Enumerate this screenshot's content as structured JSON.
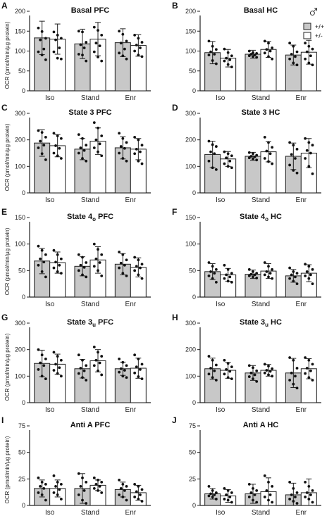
{
  "legend": {
    "symbol": "♂",
    "entries": [
      {
        "label": "+/+",
        "color": "#c8c8c8"
      },
      {
        "label": "+/-",
        "color": "#ffffff"
      }
    ]
  },
  "colors": {
    "wt": "#c8c8c8",
    "het": "#ffffff",
    "axis": "#222222"
  },
  "chart_data": [
    {
      "panel": "A",
      "title": "Basal PFC",
      "type": "bar",
      "ylabel": "OCR (pmol/min/µg protein)",
      "ylim": [
        0,
        200
      ],
      "yticks": [
        0,
        50,
        100,
        150,
        200
      ],
      "categories": [
        "Iso",
        "Stand",
        "Enr"
      ],
      "series": [
        {
          "name": "+/+",
          "values": [
            133,
            118,
            121
          ],
          "err": [
            42,
            37,
            35
          ],
          "points": [
            [
              158,
              149,
              132,
              128,
              105,
              98,
              90,
              78
            ],
            [
              150,
              148,
              122,
              116,
              108,
              92,
              90,
              75
            ],
            [
              150,
              142,
              125,
              120,
              105,
              95,
              88,
              80
            ]
          ]
        },
        {
          "name": "+/-",
          "values": [
            130,
            130,
            114
          ],
          "err": [
            38,
            42,
            27
          ],
          "points": [
            [
              148,
              140,
              132,
              128,
              108,
              98,
              82,
              80
            ],
            [
              160,
              152,
              140,
              120,
              113,
              98,
              85,
              75
            ],
            [
              140,
              132,
              122,
              115,
              108,
              100,
              90,
              86
            ]
          ]
        }
      ]
    },
    {
      "panel": "B",
      "title": "Basal HC",
      "type": "bar",
      "ylabel": "",
      "ylim": [
        0,
        200
      ],
      "yticks": [
        0,
        50,
        100,
        150,
        200
      ],
      "categories": [
        "Iso",
        "Stand",
        "Enr"
      ],
      "series": [
        {
          "name": "+/+",
          "values": [
            96,
            92,
            90
          ],
          "err": [
            28,
            10,
            25
          ],
          "points": [
            [
              125,
              112,
              104,
              98,
              92,
              90,
              76,
              68
            ],
            [
              100,
              96,
              94,
              92,
              90,
              88,
              86,
              84
            ],
            [
              120,
              112,
              98,
              92,
              86,
              80,
              70,
              65
            ]
          ]
        },
        {
          "name": "+/-",
          "values": [
            82,
            104,
            97
          ],
          "err": [
            22,
            20,
            30
          ],
          "points": [
            [
              105,
              96,
              88,
              82,
              78,
              75,
              66,
              60
            ],
            [
              125,
              120,
              108,
              104,
              100,
              95,
              86,
              80
            ],
            [
              120,
              112,
              105,
              98,
              88,
              80,
              70,
              65
            ]
          ]
        }
      ]
    },
    {
      "panel": "C",
      "title": "State 3 PFC",
      "type": "bar",
      "ylabel": "OCR (pmol/min/µg protein)",
      "ylim": [
        0,
        300
      ],
      "yticks": [
        0,
        100,
        200,
        300
      ],
      "categories": [
        "Iso",
        "Stand",
        "Enr"
      ],
      "series": [
        {
          "name": "+/+",
          "values": [
            188,
            165,
            170
          ],
          "err": [
            50,
            40,
            42
          ],
          "points": [
            [
              235,
              228,
              210,
              195,
              180,
              170,
              148,
              125
            ],
            [
              220,
              205,
              180,
              170,
              160,
              150,
              130,
              120
            ],
            [
              225,
              205,
              190,
              175,
              168,
              150,
              130,
              120
            ]
          ]
        },
        {
          "name": "+/-",
          "values": [
            178,
            195,
            165
          ],
          "err": [
            42,
            50,
            40
          ],
          "points": [
            [
              225,
              215,
              205,
              178,
              168,
              150,
              140,
              130
            ],
            [
              265,
              245,
              215,
              200,
              185,
              170,
              155,
              140
            ],
            [
              210,
              200,
              180,
              165,
              155,
              148,
              120,
              110
            ]
          ]
        }
      ]
    },
    {
      "panel": "D",
      "title": "State 3 HC",
      "type": "bar",
      "ylabel": "",
      "ylim": [
        0,
        300
      ],
      "yticks": [
        0,
        100,
        200,
        300
      ],
      "categories": [
        "Iso",
        "Stand",
        "Enr"
      ],
      "series": [
        {
          "name": "+/+",
          "values": [
            145,
            138,
            138
          ],
          "err": [
            50,
            15,
            50
          ],
          "points": [
            [
              195,
              182,
              175,
              155,
              148,
              120,
              95,
              88
            ],
            [
              152,
              148,
              142,
              138,
              136,
              132,
              128,
              124
            ],
            [
              190,
              180,
              165,
              145,
              130,
              105,
              85,
              75
            ]
          ]
        },
        {
          "name": "+/-",
          "values": [
            128,
            155,
            150
          ],
          "err": [
            28,
            38,
            55
          ],
          "points": [
            [
              155,
              148,
              140,
              132,
              120,
              110,
              100,
              95
            ],
            [
              210,
              190,
              172,
              158,
              148,
              130,
              118,
              110
            ],
            [
              205,
              190,
              180,
              160,
              150,
              130,
              100,
              72
            ]
          ]
        }
      ]
    },
    {
      "panel": "E",
      "title": "State 4o PFC",
      "titleBase": "State 4",
      "titleSub": "o",
      "titleTail": " PFC",
      "type": "bar",
      "ylabel": "OCR (pmol/min/µg protein)",
      "ylim": [
        0,
        150
      ],
      "yticks": [
        0,
        50,
        100,
        150
      ],
      "categories": [
        "Iso",
        "Stand",
        "Enr"
      ],
      "series": [
        {
          "name": "+/+",
          "values": [
            68,
            58,
            62
          ],
          "err": [
            24,
            18,
            20
          ],
          "points": [
            [
              96,
              88,
              80,
              72,
              66,
              60,
              48,
              38
            ],
            [
              80,
              75,
              65,
              60,
              56,
              50,
              42,
              38
            ],
            [
              85,
              80,
              70,
              64,
              60,
              55,
              45,
              40
            ]
          ]
        },
        {
          "name": "+/-",
          "values": [
            65,
            70,
            56
          ],
          "err": [
            20,
            25,
            18
          ],
          "points": [
            [
              88,
              80,
              72,
              66,
              60,
              55,
              48,
              45
            ],
            [
              100,
              90,
              80,
              72,
              65,
              58,
              50,
              40
            ],
            [
              75,
              70,
              62,
              58,
              55,
              50,
              42,
              35
            ]
          ]
        }
      ]
    },
    {
      "panel": "F",
      "title": "State 4o HC",
      "titleBase": "State 4",
      "titleSub": "o",
      "titleTail": " HC",
      "type": "bar",
      "ylabel": "",
      "ylim": [
        0,
        150
      ],
      "yticks": [
        0,
        50,
        100,
        150
      ],
      "categories": [
        "Iso",
        "Stand",
        "Enr"
      ],
      "series": [
        {
          "name": "+/+",
          "values": [
            48,
            43,
            40
          ],
          "err": [
            15,
            8,
            12
          ],
          "points": [
            [
              65,
              58,
              52,
              48,
              45,
              40,
              35,
              28
            ],
            [
              52,
              48,
              45,
              43,
              42,
              40,
              38,
              36
            ],
            [
              55,
              48,
              45,
              42,
              38,
              35,
              30,
              25
            ]
          ]
        },
        {
          "name": "+/-",
          "values": [
            42,
            49,
            45
          ],
          "err": [
            12,
            14,
            16
          ],
          "points": [
            [
              60,
              52,
              45,
              42,
              38,
              35,
              30,
              28
            ],
            [
              65,
              58,
              52,
              48,
              45,
              42,
              38,
              35
            ],
            [
              62,
              58,
              52,
              48,
              42,
              40,
              35,
              25
            ]
          ]
        }
      ]
    },
    {
      "panel": "G",
      "title": "State 3u PFC",
      "titleBase": "State 3",
      "titleSub": "u",
      "titleTail": " PFC",
      "type": "bar",
      "ylabel": "OCR (pmol/min/µg protein)",
      "ylim": [
        0,
        300
      ],
      "yticks": [
        0,
        100,
        200,
        300
      ],
      "categories": [
        "Iso",
        "Stand",
        "Enr"
      ],
      "series": [
        {
          "name": "+/+",
          "values": [
            148,
            128,
            128
          ],
          "err": [
            50,
            35,
            25
          ],
          "points": [
            [
              200,
              180,
              165,
              150,
              140,
              125,
              100,
              90
            ],
            [
              180,
              160,
              140,
              130,
              120,
              110,
              95,
              85
            ],
            [
              165,
              152,
              140,
              128,
              122,
              115,
              100,
              95
            ]
          ]
        },
        {
          "name": "+/-",
          "values": [
            145,
            158,
            130
          ],
          "err": [
            38,
            42,
            38
          ],
          "points": [
            [
              190,
              175,
              160,
              145,
              132,
              122,
              110,
              100
            ],
            [
              210,
              190,
              175,
              160,
              150,
              140,
              120,
              105
            ],
            [
              180,
              165,
              145,
              135,
              125,
              112,
              98,
              90
            ]
          ]
        }
      ]
    },
    {
      "panel": "H",
      "title": "State 3u HC",
      "titleBase": "State 3",
      "titleSub": "u",
      "titleTail": " HC",
      "type": "bar",
      "ylabel": "",
      "ylim": [
        0,
        300
      ],
      "yticks": [
        0,
        100,
        200,
        300
      ],
      "categories": [
        "Iso",
        "Stand",
        "Enr"
      ],
      "series": [
        {
          "name": "+/+",
          "values": [
            128,
            112,
            112
          ],
          "err": [
            40,
            28,
            55
          ],
          "points": [
            [
              175,
              160,
              142,
              130,
              120,
              108,
              95,
              85
            ],
            [
              140,
              132,
              120,
              112,
              105,
              98,
              90,
              80
            ],
            [
              170,
              160,
              130,
              112,
              100,
              85,
              70,
              55
            ]
          ]
        },
        {
          "name": "+/-",
          "values": [
            122,
            122,
            128
          ],
          "err": [
            30,
            22,
            38
          ],
          "points": [
            [
              160,
              148,
              135,
              125,
              118,
              108,
              95,
              90
            ],
            [
              145,
              138,
              128,
              122,
              118,
              112,
              105,
              100
            ],
            [
              170,
              160,
              145,
              130,
              120,
              110,
              95,
              85
            ]
          ]
        }
      ]
    },
    {
      "panel": "I",
      "title": "Anti A PFC",
      "type": "bar",
      "ylabel": "OCR (pmol/min/µg protein)",
      "ylim": [
        0,
        75
      ],
      "yticks": [
        0,
        25,
        50,
        75
      ],
      "categories": [
        "Iso",
        "Stand",
        "Enr"
      ],
      "series": [
        {
          "name": "+/+",
          "values": [
            16,
            16,
            15
          ],
          "err": [
            8,
            14,
            7
          ],
          "points": [
            [
              26,
              22,
              20,
              18,
              16,
              12,
              10,
              5
            ],
            [
              30,
              26,
              22,
              18,
              14,
              10,
              5,
              2
            ],
            [
              24,
              20,
              18,
              16,
              14,
              10,
              8,
              5
            ]
          ]
        },
        {
          "name": "+/-",
          "values": [
            16,
            19,
            12
          ],
          "err": [
            8,
            5,
            7
          ],
          "points": [
            [
              28,
              22,
              20,
              18,
              15,
              12,
              10,
              6
            ],
            [
              26,
              24,
              22,
              20,
              18,
              16,
              14,
              12
            ],
            [
              20,
              18,
              15,
              13,
              10,
              8,
              6,
              4
            ]
          ]
        }
      ]
    },
    {
      "panel": "J",
      "title": "Anti A HC",
      "type": "bar",
      "ylabel": "",
      "ylim": [
        0,
        75
      ],
      "yticks": [
        0,
        25,
        50,
        75
      ],
      "categories": [
        "Iso",
        "Stand",
        "Enr"
      ],
      "series": [
        {
          "name": "+/+",
          "values": [
            11,
            11,
            10
          ],
          "err": [
            5,
            9,
            11
          ],
          "points": [
            [
              18,
              14,
              12,
              11,
              10,
              9,
              8,
              6
            ],
            [
              20,
              16,
              14,
              12,
              10,
              8,
              5,
              3
            ],
            [
              22,
              16,
              12,
              10,
              8,
              6,
              4,
              2
            ]
          ]
        },
        {
          "name": "+/-",
          "values": [
            9,
            13,
            12
          ],
          "err": [
            6,
            13,
            13
          ],
          "points": [
            [
              16,
              14,
              12,
              10,
              8,
              6,
              5,
              3
            ],
            [
              28,
              22,
              18,
              14,
              10,
              8,
              5,
              3
            ],
            [
              22,
              18,
              14,
              12,
              10,
              8,
              6,
              3
            ]
          ]
        }
      ]
    }
  ]
}
